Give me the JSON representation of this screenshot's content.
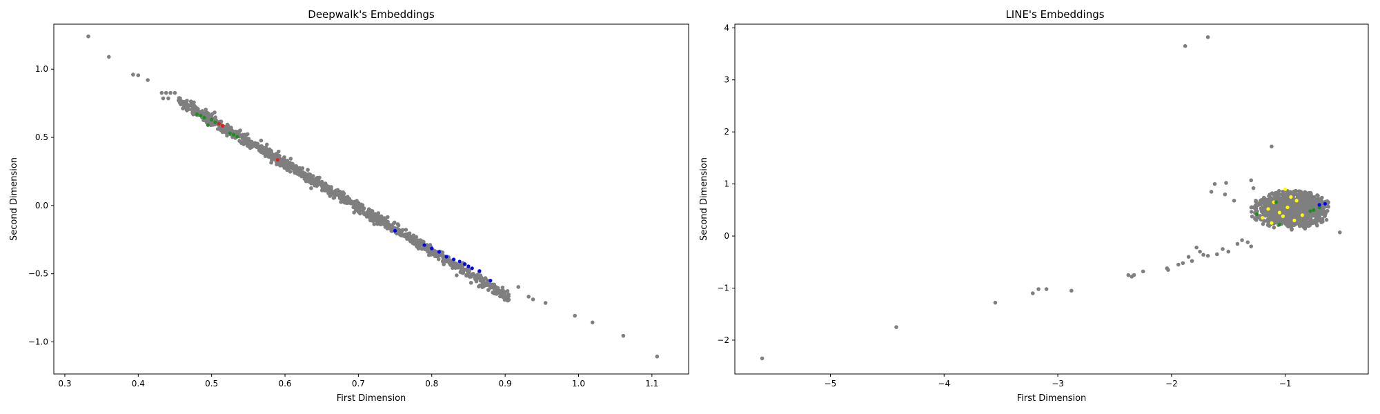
{
  "colors": {
    "background": "#ffffff",
    "axes": "#000000",
    "unlabeled": "#7f7f7f",
    "green": "#228b22",
    "red": "#e02020",
    "blue": "#0000ff",
    "yellow": "#ffff00"
  },
  "chart_data": [
    {
      "type": "scatter",
      "title": "Deepwalk's Embeddings",
      "xlabel": "First Dimension",
      "ylabel": "Second Dimension",
      "xlim": [
        0.285,
        1.15
      ],
      "ylim": [
        -1.235,
        1.33
      ],
      "xticks": [
        0.3,
        0.4,
        0.5,
        0.6,
        0.7,
        0.8,
        0.9,
        1.0,
        1.1
      ],
      "yticks": [
        -1.0,
        -0.5,
        0.0,
        0.5,
        1.0
      ],
      "grid": false,
      "legend": "none",
      "outliers": [
        [
          0.332,
          1.24
        ],
        [
          0.36,
          1.09
        ],
        [
          0.393,
          0.96
        ],
        [
          0.4,
          0.955
        ],
        [
          0.413,
          0.92
        ],
        [
          0.432,
          0.826
        ],
        [
          0.438,
          0.826
        ],
        [
          0.444,
          0.826
        ],
        [
          0.45,
          0.826
        ],
        [
          0.434,
          0.786
        ],
        [
          0.441,
          0.786
        ],
        [
          0.918,
          -0.597
        ],
        [
          0.932,
          -0.668
        ],
        [
          0.938,
          -0.688
        ],
        [
          0.955,
          -0.714
        ],
        [
          0.995,
          -0.808
        ],
        [
          1.019,
          -0.857
        ],
        [
          1.061,
          -0.955
        ],
        [
          1.107,
          -1.107
        ]
      ],
      "main_cluster": {
        "x_range": [
          0.455,
          0.905
        ],
        "line": {
          "slope": -3.21,
          "intercept": 2.235
        },
        "spread": 0.02,
        "count": 1100,
        "color": "#7f7f7f"
      },
      "labeled_points": [
        {
          "color": "#228b22",
          "points": [
            [
              0.48,
              0.67
            ],
            [
              0.485,
              0.66
            ],
            [
              0.49,
              0.645
            ],
            [
              0.495,
              0.59
            ],
            [
              0.5,
              0.63
            ],
            [
              0.505,
              0.61
            ],
            [
              0.515,
              0.585
            ],
            [
              0.525,
              0.53
            ],
            [
              0.53,
              0.52
            ],
            [
              0.535,
              0.505
            ]
          ]
        },
        {
          "color": "#e02020",
          "points": [
            [
              0.51,
              0.6
            ],
            [
              0.515,
              0.585
            ],
            [
              0.59,
              0.335
            ]
          ]
        },
        {
          "color": "#0000ff",
          "points": [
            [
              0.75,
              -0.185
            ],
            [
              0.79,
              -0.29
            ],
            [
              0.8,
              -0.315
            ],
            [
              0.81,
              -0.34
            ],
            [
              0.82,
              -0.375
            ],
            [
              0.83,
              -0.395
            ],
            [
              0.838,
              -0.41
            ],
            [
              0.845,
              -0.43
            ],
            [
              0.85,
              -0.445
            ],
            [
              0.855,
              -0.46
            ],
            [
              0.865,
              -0.48
            ],
            [
              0.88,
              -0.55
            ]
          ]
        }
      ]
    },
    {
      "type": "scatter",
      "title": "LINE's Embeddings",
      "xlabel": "First Dimension",
      "ylabel": "Second Dimension",
      "xlim": [
        -5.84,
        -0.27
      ],
      "ylim": [
        -2.65,
        4.07
      ],
      "xticks": [
        -5,
        -4,
        -3,
        -2,
        -1
      ],
      "yticks": [
        -2,
        -1,
        0,
        1,
        2,
        3,
        4
      ],
      "grid": false,
      "legend": "none",
      "outliers": [
        [
          -5.6,
          -2.35
        ],
        [
          -4.42,
          -1.75
        ],
        [
          -3.55,
          -1.28
        ],
        [
          -3.22,
          -1.1
        ],
        [
          -3.17,
          -1.02
        ],
        [
          -3.1,
          -1.02
        ],
        [
          -2.88,
          -1.05
        ],
        [
          -2.38,
          -0.75
        ],
        [
          -2.35,
          -0.78
        ],
        [
          -2.33,
          -0.75
        ],
        [
          -2.25,
          -0.68
        ],
        [
          -2.04,
          -0.62
        ],
        [
          -2.03,
          -0.65
        ],
        [
          -1.94,
          -0.55
        ],
        [
          -1.9,
          -0.52
        ],
        [
          -1.85,
          -0.4
        ],
        [
          -1.82,
          -0.48
        ],
        [
          -1.75,
          -0.3
        ],
        [
          -1.72,
          -0.36
        ],
        [
          -1.78,
          -0.22
        ],
        [
          -1.68,
          -0.38
        ],
        [
          -1.6,
          -0.35
        ],
        [
          -1.55,
          -0.25
        ],
        [
          -1.5,
          -0.3
        ],
        [
          -1.42,
          -0.15
        ],
        [
          -1.38,
          -0.08
        ],
        [
          -1.33,
          -0.12
        ],
        [
          -1.3,
          -0.2
        ],
        [
          -1.88,
          3.65
        ],
        [
          -1.68,
          3.82
        ],
        [
          -1.12,
          1.72
        ],
        [
          -1.62,
          1.0
        ],
        [
          -1.52,
          1.02
        ],
        [
          -1.53,
          0.8
        ],
        [
          -1.45,
          0.68
        ],
        [
          -1.65,
          0.85
        ],
        [
          -1.3,
          1.07
        ],
        [
          -1.28,
          0.92
        ],
        [
          -0.52,
          0.07
        ]
      ],
      "main_cluster": {
        "center": [
          -0.95,
          0.5
        ],
        "x_range": [
          -1.35,
          -0.62
        ],
        "y_range": [
          0.15,
          0.92
        ],
        "count": 1100,
        "color": "#7f7f7f"
      },
      "labeled_points": [
        {
          "color": "#ffff00",
          "points": [
            [
              -1.0,
              0.9
            ],
            [
              -0.95,
              0.75
            ],
            [
              -0.9,
              0.68
            ],
            [
              -0.98,
              0.55
            ],
            [
              -1.05,
              0.45
            ],
            [
              -1.12,
              0.25
            ],
            [
              -1.15,
              0.52
            ],
            [
              -1.1,
              0.65
            ],
            [
              -0.85,
              0.4
            ],
            [
              -0.92,
              0.3
            ],
            [
              -1.2,
              0.35
            ],
            [
              -1.02,
              0.38
            ]
          ]
        },
        {
          "color": "#228b22",
          "points": [
            [
              -1.08,
              0.65
            ],
            [
              -0.75,
              0.5
            ],
            [
              -1.25,
              0.42
            ],
            [
              -0.78,
              0.48
            ],
            [
              -1.05,
              0.22
            ],
            [
              -0.7,
              0.55
            ]
          ]
        },
        {
          "color": "#0000ff",
          "points": [
            [
              -0.65,
              0.62
            ],
            [
              -0.7,
              0.6
            ]
          ]
        }
      ]
    }
  ]
}
